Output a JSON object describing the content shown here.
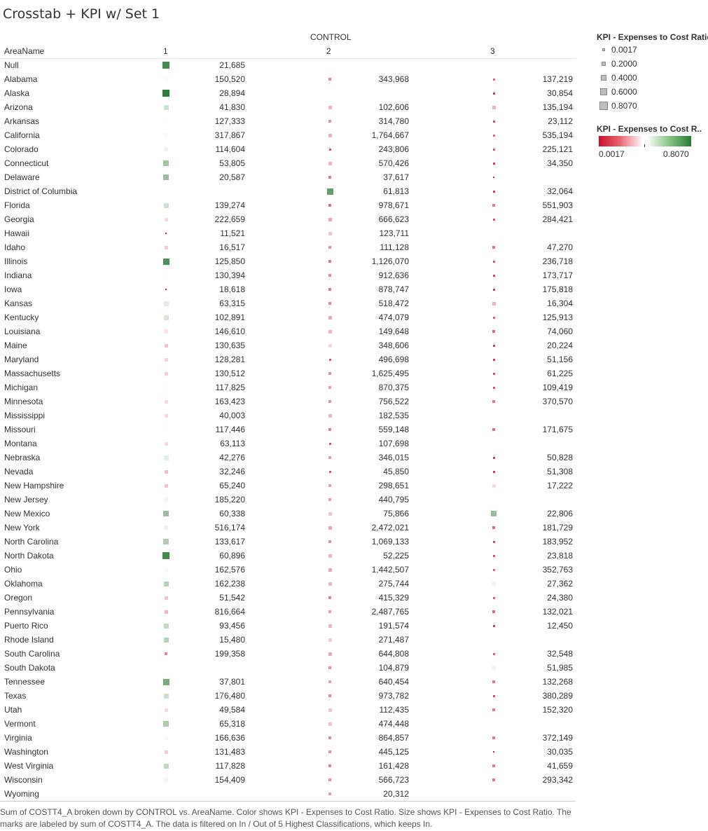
{
  "title": "Crosstab + KPI w/ Set 1",
  "header": {
    "control_label": "CONTROL",
    "area_label": "AreaName",
    "columns": [
      "1",
      "2",
      "3"
    ]
  },
  "legend": {
    "size_title": "KPI - Expenses to Cost Ratio",
    "size_items": [
      "0.0017",
      "0.2000",
      "0.4000",
      "0.6000",
      "0.8070"
    ],
    "color_title": "KPI - Expenses to Cost R..",
    "color_min": "0.0017",
    "color_max": "0.8070"
  },
  "caption": "Sum of COSTT4_A broken down by CONTROL vs. AreaName.  Color shows KPI - Expenses to Cost Ratio.  Size shows KPI - Expenses to Cost Ratio.  The marks are labeled by sum of COSTT4_A. The data is filtered on In / Out of 5 Highest Classifications, which keeps In.",
  "colors": {
    "low": "#c8102e",
    "mid": "#ffffff",
    "high": "#2a7a37"
  },
  "chart_data": {
    "type": "table",
    "measure": "Sum of COSTT4_A",
    "kpi": "KPI - Expenses to Cost Ratio",
    "kpi_range": [
      0.0017,
      0.807
    ],
    "columns": [
      "1",
      "2",
      "3"
    ],
    "rows": [
      {
        "state": "Null",
        "values": [
          "21,685",
          "",
          ""
        ],
        "kpi": [
          0.76,
          null,
          null
        ]
      },
      {
        "state": "Alabama",
        "values": [
          "150,520",
          "343,968",
          "137,219"
        ],
        "kpi": [
          0.42,
          0.2,
          0.15
        ]
      },
      {
        "state": "Alaska",
        "values": [
          "28,894",
          "",
          "30,854"
        ],
        "kpi": [
          0.8,
          null,
          0.08
        ]
      },
      {
        "state": "Arizona",
        "values": [
          "41,830",
          "102,606",
          "135,194"
        ],
        "kpi": [
          0.5,
          0.28,
          0.28
        ]
      },
      {
        "state": "Arkansas",
        "values": [
          "127,333",
          "314,780",
          "23,112"
        ],
        "kpi": [
          0.41,
          0.22,
          0.1
        ]
      },
      {
        "state": "California",
        "values": [
          "317,867",
          "1,764,667",
          "535,194"
        ],
        "kpi": [
          0.42,
          0.27,
          0.15
        ]
      },
      {
        "state": "Colorado",
        "values": [
          "114,604",
          "243,806",
          "225,121"
        ],
        "kpi": [
          0.44,
          0.12,
          0.12
        ]
      },
      {
        "state": "Connecticut",
        "values": [
          "53,805",
          "570,426",
          "34,350"
        ],
        "kpi": [
          0.58,
          0.28,
          0.08
        ]
      },
      {
        "state": "Delaware",
        "values": [
          "20,587",
          "37,617",
          ""
        ],
        "kpi": [
          0.6,
          0.18,
          0.04
        ]
      },
      {
        "state": "District of Columbia",
        "values": [
          "",
          "61,813",
          "32,064"
        ],
        "kpi": [
          null,
          0.7,
          0.08
        ]
      },
      {
        "state": "Florida",
        "values": [
          "139,274",
          "978,671",
          "551,903"
        ],
        "kpi": [
          0.5,
          0.16,
          0.18
        ]
      },
      {
        "state": "Georgia",
        "values": [
          "222,659",
          "666,623",
          "284,421"
        ],
        "kpi": [
          0.34,
          0.26,
          0.12
        ]
      },
      {
        "state": "Hawaii",
        "values": [
          "11,521",
          "123,711",
          ""
        ],
        "kpi": [
          0.03,
          0.3,
          null
        ]
      },
      {
        "state": "Idaho",
        "values": [
          "16,517",
          "111,128",
          "47,270"
        ],
        "kpi": [
          0.32,
          0.22,
          0.18
        ]
      },
      {
        "state": "Illinois",
        "values": [
          "125,850",
          "1,126,070",
          "236,718"
        ],
        "kpi": [
          0.74,
          0.18,
          0.12
        ]
      },
      {
        "state": "Indiana",
        "values": [
          "130,394",
          "912,636",
          "173,717"
        ],
        "kpi": [
          0.4,
          0.2,
          0.1
        ]
      },
      {
        "state": "Iowa",
        "values": [
          "18,618",
          "878,747",
          "175,818"
        ],
        "kpi": [
          0.03,
          0.18,
          0.08
        ]
      },
      {
        "state": "Kansas",
        "values": [
          "63,315",
          "518,472",
          "16,304"
        ],
        "kpi": [
          0.46,
          0.2,
          0.28
        ]
      },
      {
        "state": "Kentucky",
        "values": [
          "102,891",
          "474,079",
          "125,913"
        ],
        "kpi": [
          0.48,
          0.26,
          0.14
        ]
      },
      {
        "state": "Louisiana",
        "values": [
          "146,610",
          "149,648",
          "74,060"
        ],
        "kpi": [
          0.36,
          0.28,
          0.16
        ]
      },
      {
        "state": "Maine",
        "values": [
          "130,635",
          "348,606",
          "20,224"
        ],
        "kpi": [
          0.3,
          0.34,
          0.08
        ]
      },
      {
        "state": "Maryland",
        "values": [
          "128,281",
          "496,698",
          "51,156"
        ],
        "kpi": [
          0.33,
          0.12,
          0.08
        ]
      },
      {
        "state": "Massachusetts",
        "values": [
          "130,512",
          "1,625,495",
          "61,225"
        ],
        "kpi": [
          0.32,
          0.22,
          0.1
        ]
      },
      {
        "state": "Michigan",
        "values": [
          "117,825",
          "870,375",
          "109,419"
        ],
        "kpi": [
          0.4,
          0.24,
          0.12
        ]
      },
      {
        "state": "Minnesota",
        "values": [
          "163,423",
          "756,522",
          "370,570"
        ],
        "kpi": [
          0.34,
          0.22,
          0.18
        ]
      },
      {
        "state": "Mississippi",
        "values": [
          "40,003",
          "182,535",
          ""
        ],
        "kpi": [
          0.34,
          0.28,
          null
        ]
      },
      {
        "state": "Missouri",
        "values": [
          "117,446",
          "559,148",
          "171,675"
        ],
        "kpi": [
          0.4,
          0.2,
          0.16
        ]
      },
      {
        "state": "Montana",
        "values": [
          "63,113",
          "107,698",
          ""
        ],
        "kpi": [
          0.34,
          0.12,
          null
        ]
      },
      {
        "state": "Nebraska",
        "values": [
          "42,276",
          "346,015",
          "50,828"
        ],
        "kpi": [
          0.46,
          0.24,
          0.08
        ]
      },
      {
        "state": "Nevada",
        "values": [
          "32,246",
          "45,850",
          "51,308"
        ],
        "kpi": [
          0.3,
          0.12,
          0.08
        ]
      },
      {
        "state": "New Hampshire",
        "values": [
          "65,240",
          "298,651",
          "17,222"
        ],
        "kpi": [
          0.3,
          0.24,
          0.34
        ]
      },
      {
        "state": "New Jersey",
        "values": [
          "185,220",
          "440,795",
          ""
        ],
        "kpi": [
          0.38,
          0.24,
          null
        ]
      },
      {
        "state": "New Mexico",
        "values": [
          "60,338",
          "75,866",
          "22,806"
        ],
        "kpi": [
          0.6,
          0.3,
          0.6
        ]
      },
      {
        "state": "New York",
        "values": [
          "516,174",
          "2,472,021",
          "181,729"
        ],
        "kpi": [
          0.44,
          0.26,
          0.16
        ]
      },
      {
        "state": "North Carolina",
        "values": [
          "133,617",
          "1,069,133",
          "183,952"
        ],
        "kpi": [
          0.56,
          0.22,
          0.1
        ]
      },
      {
        "state": "North Dakota",
        "values": [
          "60,896",
          "52,225",
          "23,818"
        ],
        "kpi": [
          0.76,
          0.28,
          0.12
        ]
      },
      {
        "state": "Ohio",
        "values": [
          "162,576",
          "1,442,507",
          "352,763"
        ],
        "kpi": [
          0.42,
          0.26,
          0.14
        ]
      },
      {
        "state": "Oklahoma",
        "values": [
          "162,238",
          "275,744",
          "27,362"
        ],
        "kpi": [
          0.54,
          0.28,
          0.38
        ]
      },
      {
        "state": "Oregon",
        "values": [
          "51,542",
          "415,329",
          "24,380"
        ],
        "kpi": [
          0.3,
          0.2,
          0.14
        ]
      },
      {
        "state": "Pennsylvania",
        "values": [
          "816,664",
          "2,487,765",
          "132,021"
        ],
        "kpi": [
          0.28,
          0.24,
          0.16
        ]
      },
      {
        "state": "Puerto Rico",
        "values": [
          "93,456",
          "191,574",
          "12,450"
        ],
        "kpi": [
          0.52,
          0.28,
          0.08
        ]
      },
      {
        "state": "Rhode Island",
        "values": [
          "15,480",
          "271,487",
          ""
        ],
        "kpi": [
          0.54,
          0.32,
          null
        ]
      },
      {
        "state": "South Carolina",
        "values": [
          "199,358",
          "644,808",
          "32,548"
        ],
        "kpi": [
          0.2,
          0.26,
          0.14
        ]
      },
      {
        "state": "South Dakota",
        "values": [
          "",
          "104,879",
          "51,985"
        ],
        "kpi": [
          null,
          0.22,
          0.38
        ]
      },
      {
        "state": "Tennessee",
        "values": [
          "37,801",
          "640,454",
          "132,268"
        ],
        "kpi": [
          0.66,
          0.24,
          0.18
        ]
      },
      {
        "state": "Texas",
        "values": [
          "176,480",
          "973,782",
          "380,289"
        ],
        "kpi": [
          0.5,
          0.2,
          0.12
        ]
      },
      {
        "state": "Utah",
        "values": [
          "49,584",
          "112,435",
          "152,320"
        ],
        "kpi": [
          0.34,
          0.3,
          0.18
        ]
      },
      {
        "state": "Vermont",
        "values": [
          "65,318",
          "474,448",
          ""
        ],
        "kpi": [
          0.56,
          0.3,
          null
        ]
      },
      {
        "state": "Virginia",
        "values": [
          "166,636",
          "864,857",
          "372,149"
        ],
        "kpi": [
          0.42,
          0.2,
          0.18
        ]
      },
      {
        "state": "Washington",
        "values": [
          "131,483",
          "445,125",
          "30,035"
        ],
        "kpi": [
          0.32,
          0.22,
          0.04
        ]
      },
      {
        "state": "West Virginia",
        "values": [
          "117,828",
          "161,428",
          "41,659"
        ],
        "kpi": [
          0.52,
          0.2,
          0.18
        ]
      },
      {
        "state": "Wisconsin",
        "values": [
          "154,409",
          "566,723",
          "293,342"
        ],
        "kpi": [
          0.38,
          0.22,
          0.18
        ]
      },
      {
        "state": "Wyoming",
        "values": [
          "",
          "20,312",
          ""
        ],
        "kpi": [
          null,
          0.24,
          null
        ]
      }
    ]
  }
}
